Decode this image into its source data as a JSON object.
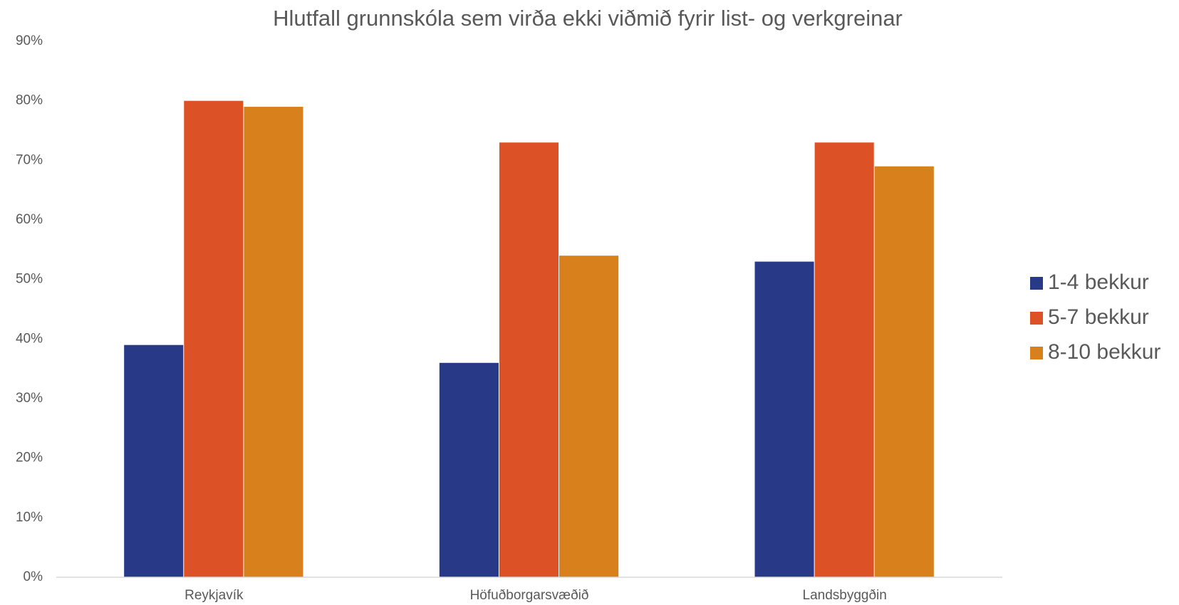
{
  "chart_data": {
    "type": "bar",
    "title": "Hlutfall grunnskóla sem virða ekki viðmið fyrir list- og verkgreinar",
    "categories": [
      "Reykjavík",
      "Höfuðborgarsvæðið",
      "Landsbyggðin"
    ],
    "series": [
      {
        "name": "1-4 bekkur",
        "color": "#283a87",
        "values": [
          39,
          36,
          53
        ]
      },
      {
        "name": "5-7 bekkur",
        "color": "#dc5226",
        "values": [
          80,
          73,
          73
        ]
      },
      {
        "name": "8-10 bekkur",
        "color": "#d8801c",
        "values": [
          79,
          54,
          69
        ]
      }
    ],
    "ylim": [
      0,
      90
    ],
    "yticks": [
      {
        "value": 0,
        "label": "0%"
      },
      {
        "value": 10,
        "label": "10%"
      },
      {
        "value": 20,
        "label": "20%"
      },
      {
        "value": 30,
        "label": "30%"
      },
      {
        "value": 40,
        "label": "40%"
      },
      {
        "value": 50,
        "label": "50%"
      },
      {
        "value": 60,
        "label": "60%"
      },
      {
        "value": 70,
        "label": "70%"
      },
      {
        "value": 80,
        "label": "80%"
      },
      {
        "value": 90,
        "label": "90%"
      }
    ],
    "grid": false,
    "legend": "right"
  }
}
